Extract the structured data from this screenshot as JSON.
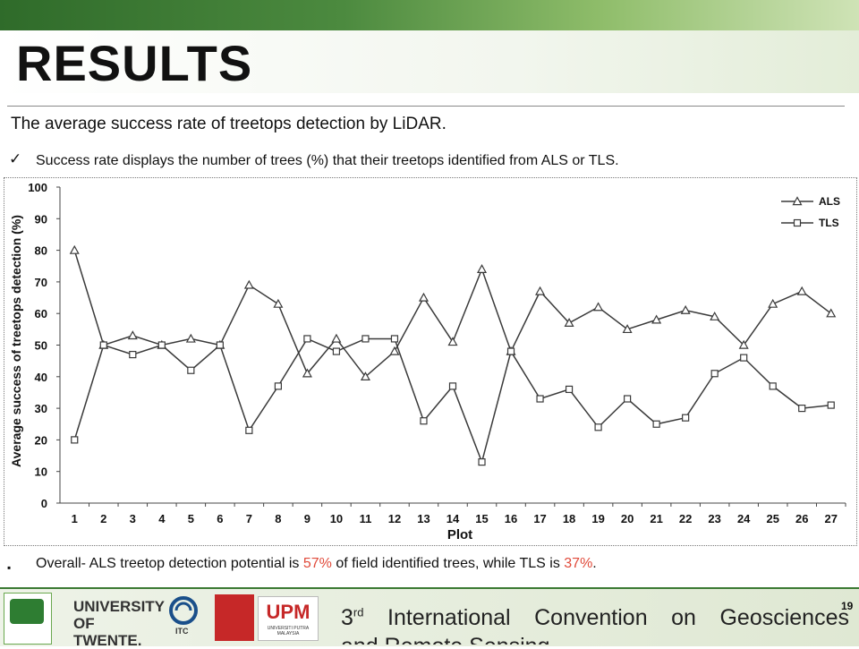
{
  "slide": {
    "title": "RESULTS",
    "subtitle": "The average success rate of treetops detection by LiDAR.",
    "bullet1": "Success rate displays the number of trees (%) that their treetops identified from ALS or TLS.",
    "bullet2_pre": "Overall- ALS treetop detection potential is ",
    "bullet2_als": "57%",
    "bullet2_mid": " of field identified trees, while TLS is ",
    "bullet2_tls": "37%",
    "bullet2_post": ".",
    "page_number": "19"
  },
  "footer": {
    "conference_num": "3",
    "conference_sup": "rd",
    "conference_line1": "International Convention on Geosciences",
    "conference_line2": "and Remote Sensing",
    "twente_line1": "UNIVERSITY",
    "twente_line2": "OF TWENTE.",
    "itc": "ITC",
    "upm": "UPM",
    "upm_sub": "UNIVERSITI PUTRA MALAYSIA"
  },
  "colors": {
    "accent_green": "#3b7a33",
    "highlight_red": "#e04a3a",
    "series_line": "#3a3a3a"
  },
  "chart_data": {
    "type": "line",
    "xlabel": "Plot",
    "ylabel": "Average success of treetops detection (%)",
    "ylim": [
      0,
      100
    ],
    "yticks": [
      0,
      10,
      20,
      30,
      40,
      50,
      60,
      70,
      80,
      90,
      100
    ],
    "categories": [
      "1",
      "2",
      "3",
      "4",
      "5",
      "6",
      "7",
      "8",
      "9",
      "10",
      "11",
      "12",
      "13",
      "14",
      "15",
      "16",
      "17",
      "18",
      "19",
      "20",
      "21",
      "22",
      "23",
      "24",
      "25",
      "26",
      "27"
    ],
    "legend_position": "top-right",
    "grid": false,
    "series": [
      {
        "name": "ALS",
        "marker": "triangle",
        "values": [
          80,
          50,
          53,
          50,
          52,
          50,
          69,
          63,
          41,
          52,
          40,
          48,
          65,
          51,
          74,
          48,
          67,
          57,
          62,
          55,
          58,
          61,
          59,
          50,
          63,
          67,
          60
        ]
      },
      {
        "name": "TLS",
        "marker": "square",
        "values": [
          20,
          50,
          47,
          50,
          42,
          50,
          23,
          37,
          52,
          48,
          52,
          52,
          26,
          37,
          13,
          48,
          33,
          36,
          24,
          33,
          25,
          27,
          41,
          46,
          37,
          30,
          31
        ]
      }
    ]
  }
}
